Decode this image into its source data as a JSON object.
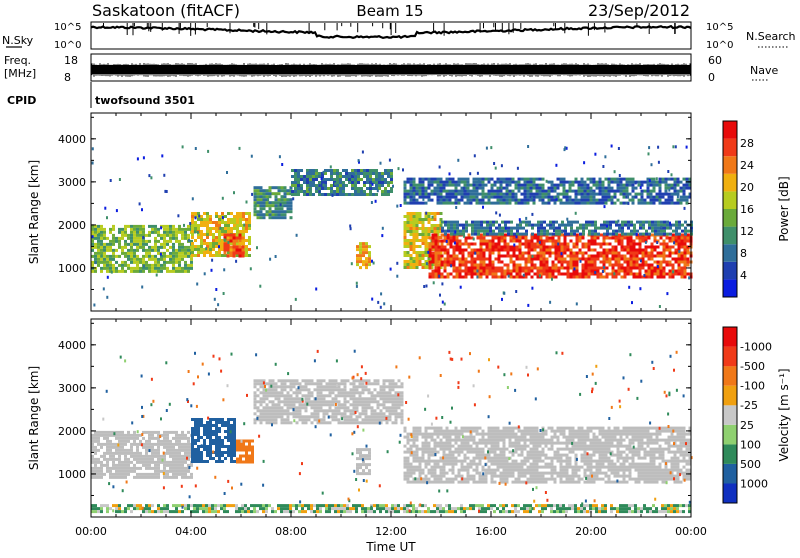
{
  "header": {
    "station": "Saskatoon (fitACF)",
    "beam": "Beam 15",
    "date": "23/Sep/2012"
  },
  "colors": {
    "power_scale": [
      "#0b1de0",
      "#1f3fb0",
      "#2f6e9a",
      "#3f8f6a",
      "#6aaa3a",
      "#b7cc20",
      "#f0b010",
      "#f07818",
      "#f03a18",
      "#e80a0a"
    ],
    "velocity_scale": [
      "#1030c0",
      "#2060a0",
      "#2f8a5a",
      "#8fd070",
      "#c8c8c8",
      "#c8c8c8",
      "#f0a010",
      "#f07818",
      "#f03a18",
      "#e80a0a"
    ],
    "ground_scatter": "#bdbdbd"
  },
  "chart_data": [
    {
      "type": "line",
      "name": "noise-panel",
      "left_labels": {
        "name": "N.Sky",
        "top": "10^5",
        "bottom": "10^0"
      },
      "right_labels": {
        "name": "N.Search",
        "top": "10^5",
        "bottom": "10^0"
      }
    },
    {
      "type": "line",
      "name": "freq-panel",
      "left_labels": {
        "name": "Freq.",
        "unit": "[MHz]",
        "top": "18",
        "bottom": "8"
      },
      "right_labels": {
        "name": "Nave",
        "top": "60",
        "bottom": "0"
      }
    },
    {
      "type": "table",
      "name": "cpid-panel",
      "label": "CPID",
      "value": "twofsound 3501"
    },
    {
      "type": "heatmap",
      "name": "power-panel",
      "ylabel": "Slant Range [km]",
      "yticks": [
        "1000",
        "2000",
        "3000",
        "4000"
      ],
      "ylim": [
        0,
        4600
      ],
      "xlim_hours": [
        0,
        24
      ],
      "colorbar": {
        "label": "Power [dB]",
        "ticks": [
          "4",
          "8",
          "12",
          "16",
          "20",
          "24",
          "28"
        ],
        "range": [
          0,
          30
        ]
      },
      "regions": [
        {
          "t": [
            0.0,
            4.0
          ],
          "r": [
            900,
            2000
          ],
          "power_db": 14
        },
        {
          "t": [
            4.0,
            6.3
          ],
          "r": [
            1300,
            2300
          ],
          "power_db": 18
        },
        {
          "t": [
            5.3,
            6.1
          ],
          "r": [
            1300,
            1800
          ],
          "power_db": 24
        },
        {
          "t": [
            6.5,
            8.0
          ],
          "r": [
            2200,
            2900
          ],
          "power_db": 10
        },
        {
          "t": [
            8.0,
            12.0
          ],
          "r": [
            2700,
            3300
          ],
          "power_db": 9
        },
        {
          "t": [
            10.6,
            11.2
          ],
          "r": [
            1000,
            1600
          ],
          "power_db": 20
        },
        {
          "t": [
            12.5,
            14.0
          ],
          "r": [
            1000,
            2300
          ],
          "power_db": 18
        },
        {
          "t": [
            13.5,
            24.0
          ],
          "r": [
            800,
            1800
          ],
          "power_db": 26
        },
        {
          "t": [
            14.0,
            24.0
          ],
          "r": [
            1800,
            2100
          ],
          "power_db": 8
        },
        {
          "t": [
            12.5,
            24.0
          ],
          "r": [
            2500,
            3100
          ],
          "power_db": 7
        }
      ]
    },
    {
      "type": "heatmap",
      "name": "velocity-panel",
      "ylabel": "Slant Range [km]",
      "yticks": [
        "1000",
        "2000",
        "3000",
        "4000"
      ],
      "ylim": [
        0,
        4600
      ],
      "xlim_hours": [
        0,
        24
      ],
      "xlabel": "Time UT",
      "xticks": [
        "00:00",
        "04:00",
        "08:00",
        "12:00",
        "16:00",
        "20:00",
        "00:00"
      ],
      "colorbar": {
        "label": "Velocity [m s⁻¹]",
        "ticks": [
          "1000",
          "500",
          "100",
          "25",
          "-25",
          "-100",
          "-500",
          "-1000"
        ],
        "range": [
          -1200,
          1200
        ]
      },
      "regions": [
        {
          "t": [
            0.0,
            4.0
          ],
          "r": [
            900,
            2000
          ],
          "velocity": 0,
          "ground_scatter": true
        },
        {
          "t": [
            4.0,
            5.8
          ],
          "r": [
            1300,
            2300
          ],
          "velocity": 400
        },
        {
          "t": [
            5.8,
            6.5
          ],
          "r": [
            1300,
            1800
          ],
          "velocity": -200
        },
        {
          "t": [
            6.5,
            12.5
          ],
          "r": [
            2200,
            3200
          ],
          "velocity": 0,
          "ground_scatter": true
        },
        {
          "t": [
            10.6,
            11.2
          ],
          "r": [
            1000,
            1600
          ],
          "velocity": 0,
          "ground_scatter": true
        },
        {
          "t": [
            12.5,
            24.0
          ],
          "r": [
            800,
            2100
          ],
          "velocity": 0,
          "ground_scatter": true
        },
        {
          "t": [
            0.0,
            24.0
          ],
          "r": [
            100,
            300
          ],
          "velocity": 50
        }
      ]
    }
  ]
}
